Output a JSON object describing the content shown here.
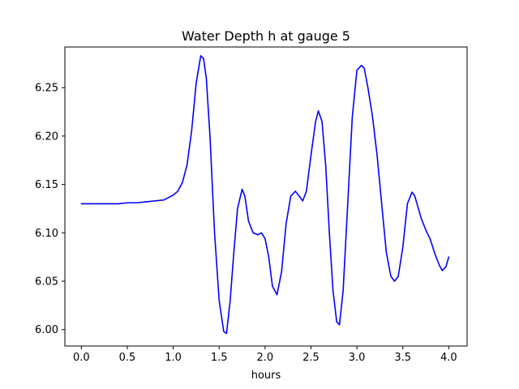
{
  "chart_data": {
    "type": "line",
    "title": "Water Depth h at gauge 5",
    "xlabel": "hours",
    "ylabel": "",
    "xlim": [
      -0.18,
      4.2
    ],
    "ylim": [
      5.983,
      6.292
    ],
    "xticks": [
      0.0,
      0.5,
      1.0,
      1.5,
      2.0,
      2.5,
      3.0,
      3.5,
      4.0
    ],
    "xtick_labels": [
      "0.0",
      "0.5",
      "1.0",
      "1.5",
      "2.0",
      "2.5",
      "3.0",
      "3.5",
      "4.0"
    ],
    "yticks": [
      6.0,
      6.05,
      6.1,
      6.15,
      6.2,
      6.25
    ],
    "ytick_labels": [
      "6.00",
      "6.05",
      "6.10",
      "6.15",
      "6.20",
      "6.25"
    ],
    "grid": false,
    "line_color": "#0000ff",
    "series": [
      {
        "name": "",
        "x": [
          0.0,
          0.2,
          0.4,
          0.5,
          0.6,
          0.7,
          0.8,
          0.9,
          1.0,
          1.05,
          1.1,
          1.15,
          1.2,
          1.25,
          1.3,
          1.33,
          1.36,
          1.4,
          1.45,
          1.5,
          1.55,
          1.58,
          1.62,
          1.66,
          1.7,
          1.75,
          1.78,
          1.82,
          1.87,
          1.92,
          1.96,
          2.0,
          2.04,
          2.08,
          2.13,
          2.18,
          2.23,
          2.28,
          2.33,
          2.37,
          2.41,
          2.45,
          2.5,
          2.55,
          2.58,
          2.62,
          2.66,
          2.7,
          2.74,
          2.78,
          2.81,
          2.85,
          2.9,
          2.95,
          3.0,
          3.05,
          3.08,
          3.12,
          3.17,
          3.22,
          3.27,
          3.32,
          3.37,
          3.41,
          3.45,
          3.5,
          3.55,
          3.6,
          3.63,
          3.67,
          3.7,
          3.75,
          3.8,
          3.85,
          3.9,
          3.93,
          3.97,
          4.0
        ],
        "y": [
          6.13,
          6.13,
          6.13,
          6.131,
          6.131,
          6.132,
          6.133,
          6.134,
          6.139,
          6.143,
          6.152,
          6.17,
          6.205,
          6.255,
          6.283,
          6.28,
          6.26,
          6.2,
          6.1,
          6.03,
          5.998,
          5.996,
          6.03,
          6.08,
          6.125,
          6.145,
          6.138,
          6.112,
          6.1,
          6.098,
          6.1,
          6.094,
          6.075,
          6.045,
          6.036,
          6.06,
          6.11,
          6.138,
          6.143,
          6.138,
          6.133,
          6.143,
          6.18,
          6.215,
          6.226,
          6.215,
          6.17,
          6.1,
          6.04,
          6.008,
          6.005,
          6.04,
          6.13,
          6.22,
          6.268,
          6.273,
          6.27,
          6.25,
          6.22,
          6.18,
          6.13,
          6.08,
          6.055,
          6.05,
          6.055,
          6.085,
          6.13,
          6.142,
          6.138,
          6.125,
          6.115,
          6.103,
          6.093,
          6.078,
          6.066,
          6.061,
          6.065,
          6.075
        ]
      }
    ]
  }
}
